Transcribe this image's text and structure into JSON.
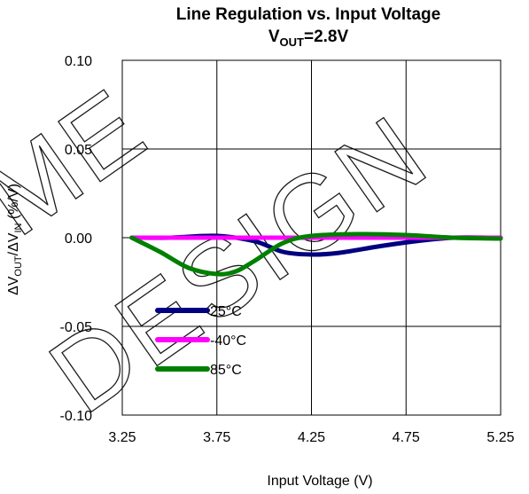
{
  "chart_data": {
    "type": "line",
    "title": "Line Regulation vs. Input Voltage",
    "subtitle": {
      "prefix": "V",
      "sub": "OUT",
      "suffix": "=2.8V"
    },
    "xlabel": "Input Voltage (V)",
    "ylabel": {
      "p1": "ΔV",
      "s1": "OUT",
      "p2": "/ΔV",
      "s2": "IN",
      "p3": " (%/V)"
    },
    "xlim": [
      3.25,
      5.25
    ],
    "ylim": [
      -0.1,
      0.1
    ],
    "xticks": [
      "3.25",
      "3.75",
      "4.25",
      "4.75",
      "5.25"
    ],
    "yticks": [
      "0.10",
      "0.05",
      "0.00",
      "-0.05",
      "-0.10"
    ],
    "grid": true,
    "legend_position": "bottom-left",
    "watermark": [
      "ME",
      "DESIGN"
    ],
    "series": [
      {
        "name": "25°C",
        "color": "#000080",
        "x": [
          3.3,
          3.5,
          3.75,
          3.95,
          4.1,
          4.25,
          4.4,
          4.6,
          4.8,
          5.0,
          5.2,
          5.25
        ],
        "y": [
          0.0,
          0.0,
          0.001,
          -0.002,
          -0.008,
          -0.0095,
          -0.0085,
          -0.005,
          -0.002,
          0.0,
          0.0,
          0.0
        ]
      },
      {
        "name": "-40°C",
        "color": "#ff00ff",
        "x": [
          3.3,
          3.75,
          4.25,
          4.75,
          5.25
        ],
        "y": [
          0.0,
          0.0,
          0.0,
          0.0,
          0.0
        ]
      },
      {
        "name": "85°C",
        "color": "#008000",
        "x": [
          3.3,
          3.45,
          3.6,
          3.75,
          3.85,
          3.95,
          4.1,
          4.25,
          4.5,
          4.75,
          5.0,
          5.25
        ],
        "y": [
          0.0,
          -0.008,
          -0.017,
          -0.0205,
          -0.019,
          -0.013,
          -0.003,
          0.001,
          0.002,
          0.0015,
          0.0,
          -0.0005
        ]
      }
    ]
  }
}
